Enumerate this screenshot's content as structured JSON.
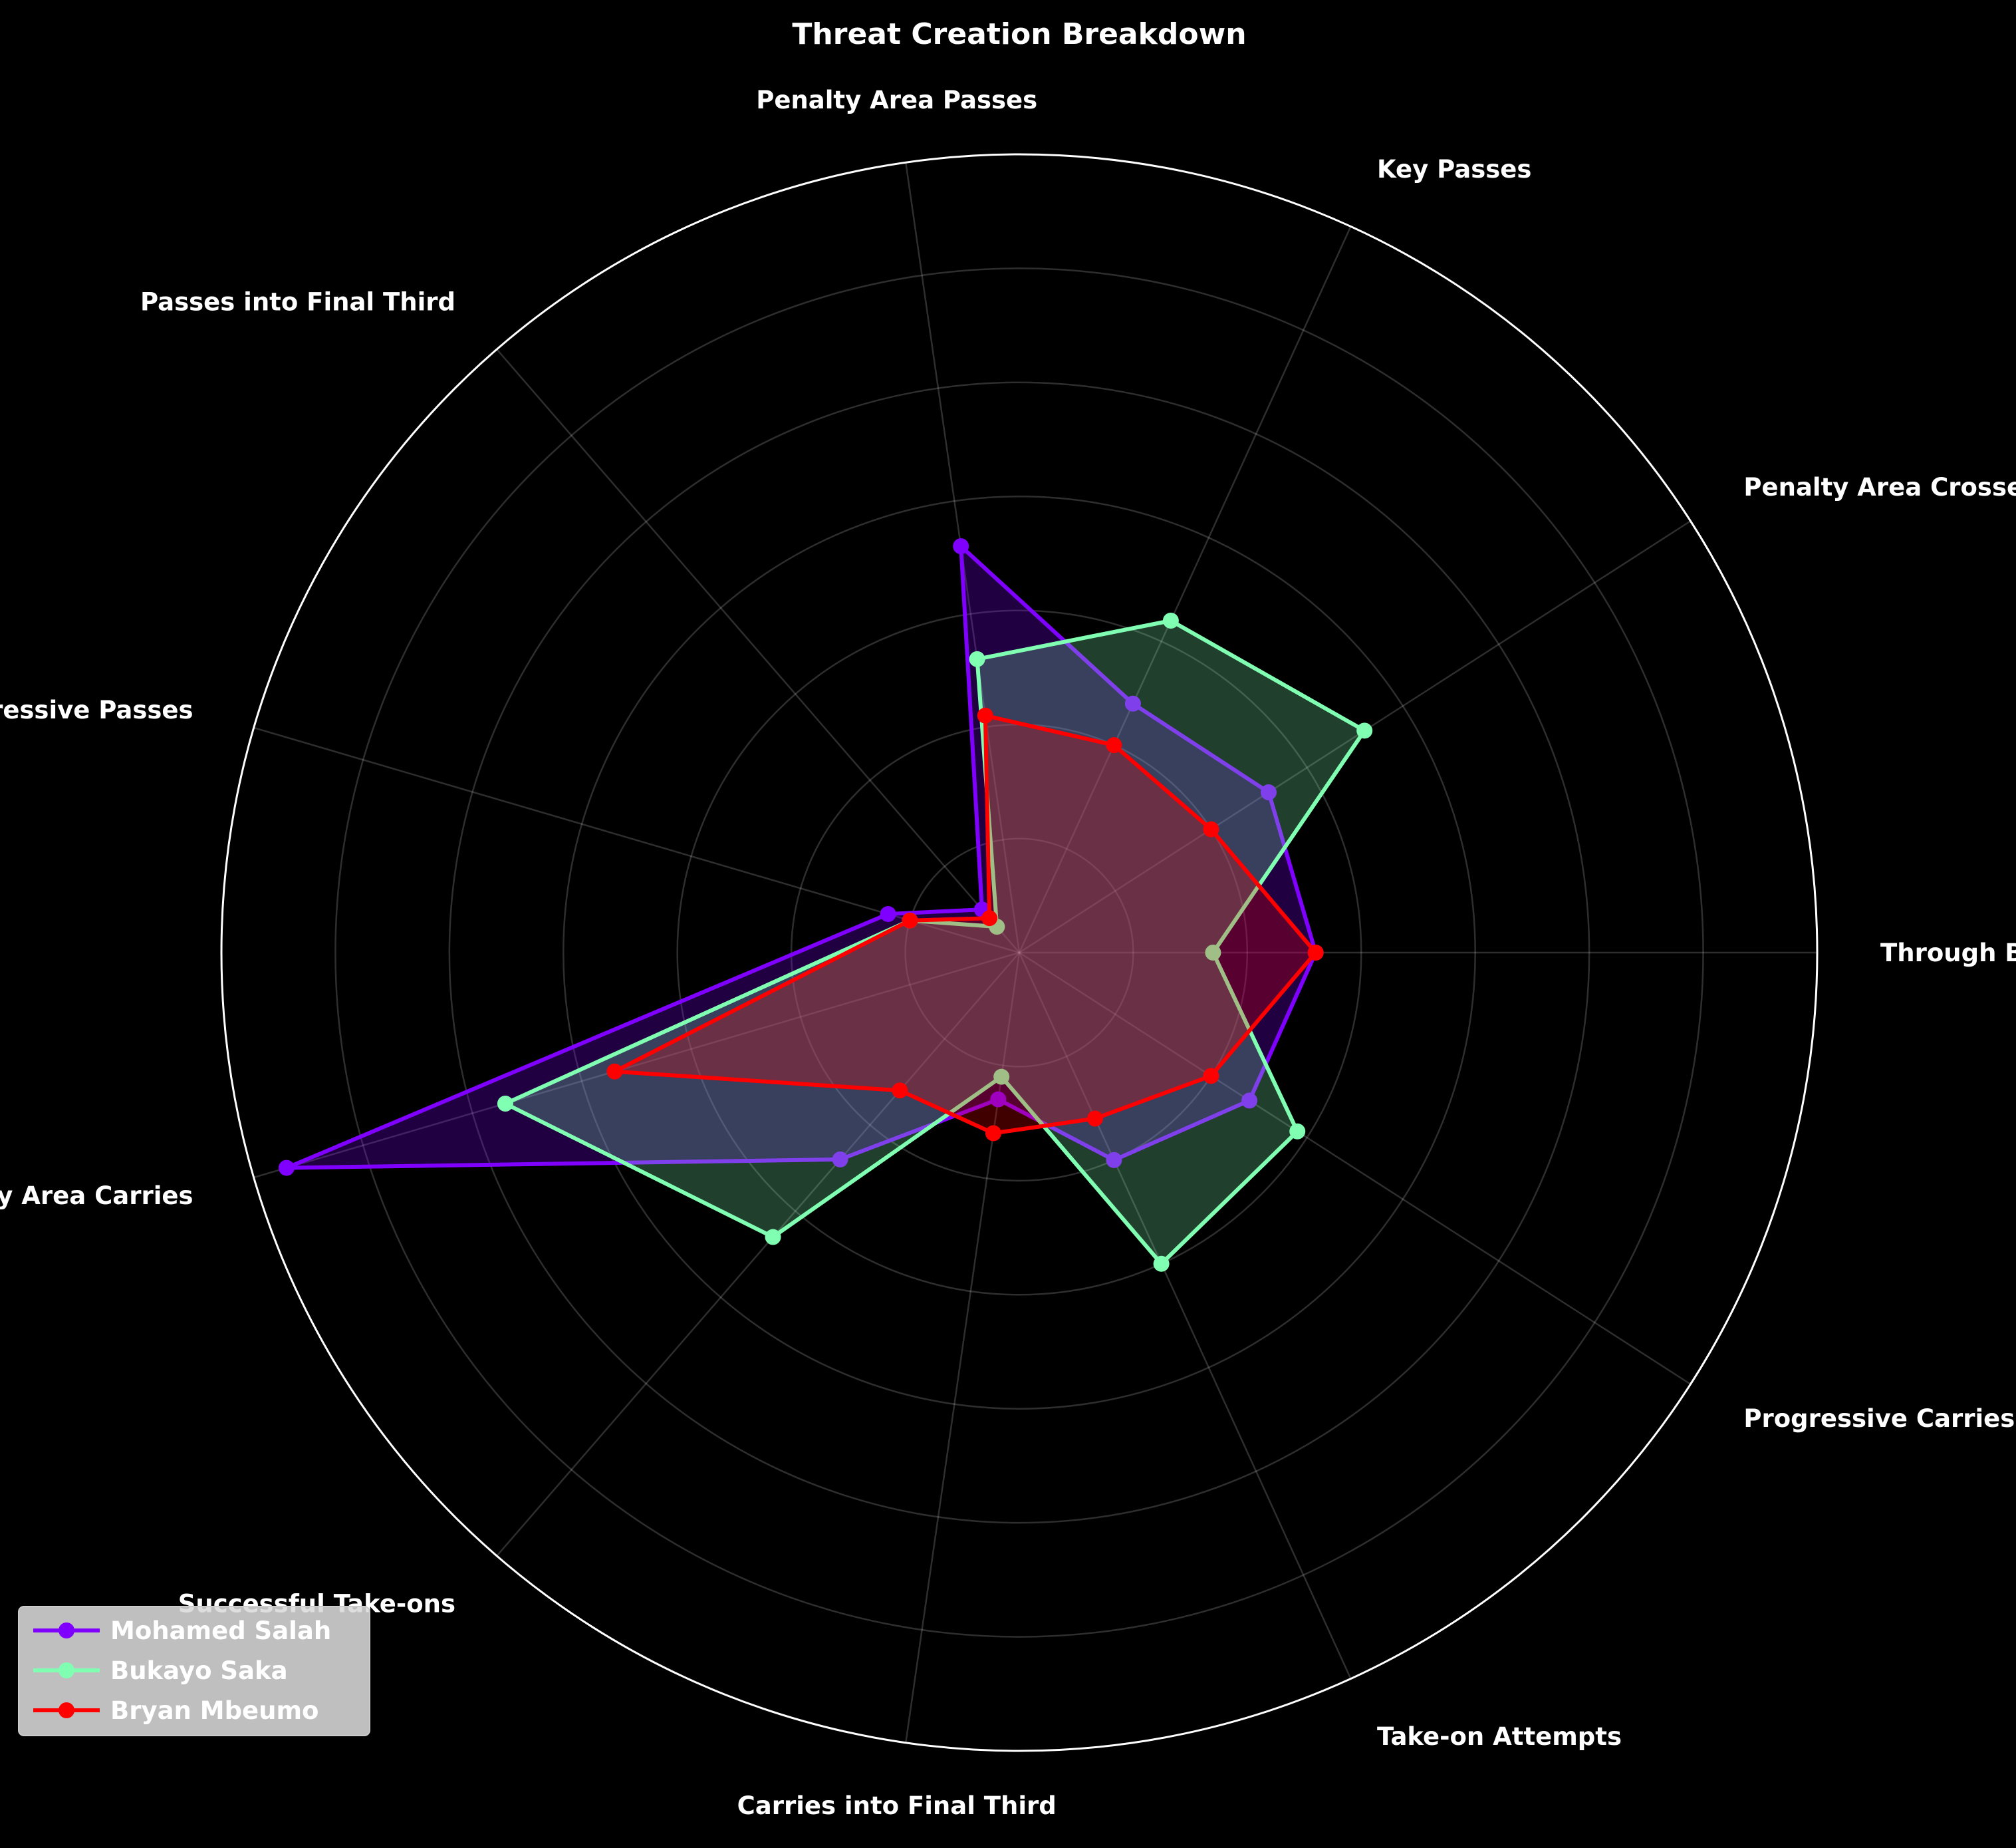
{
  "chart_data": {
    "type": "radar",
    "title": "Threat Creation Breakdown",
    "categories": [
      "Through Balls",
      "Penalty Area Crosses",
      "Key Passes",
      "Penalty Area Passes",
      "Passes into Final Third",
      "Progressive Passes",
      "Penalty Area Carries",
      "Successful Take-ons",
      "Carries into Final Third",
      "Take-on Attempts",
      "Progressive Carries"
    ],
    "rlim": [
      0,
      7
    ],
    "grid": true,
    "legend_position": "lower-left",
    "series": [
      {
        "name": "Mohamed Salah",
        "color": "#7f00ff",
        "values": [
          2.6,
          2.6,
          2.4,
          3.6,
          0.5,
          1.2,
          6.7,
          2.4,
          1.3,
          2.0,
          2.4
        ]
      },
      {
        "name": "Bukayo Saka",
        "color": "#80ffb3",
        "values": [
          1.7,
          3.6,
          3.2,
          2.6,
          0.3,
          1.0,
          4.7,
          3.3,
          1.1,
          3.0,
          2.9
        ]
      },
      {
        "name": "Bryan Mbeumo",
        "color": "#ff0000",
        "values": [
          2.6,
          2.0,
          2.0,
          2.1,
          0.4,
          1.0,
          3.7,
          1.6,
          1.6,
          1.6,
          2.0
        ]
      }
    ]
  }
}
